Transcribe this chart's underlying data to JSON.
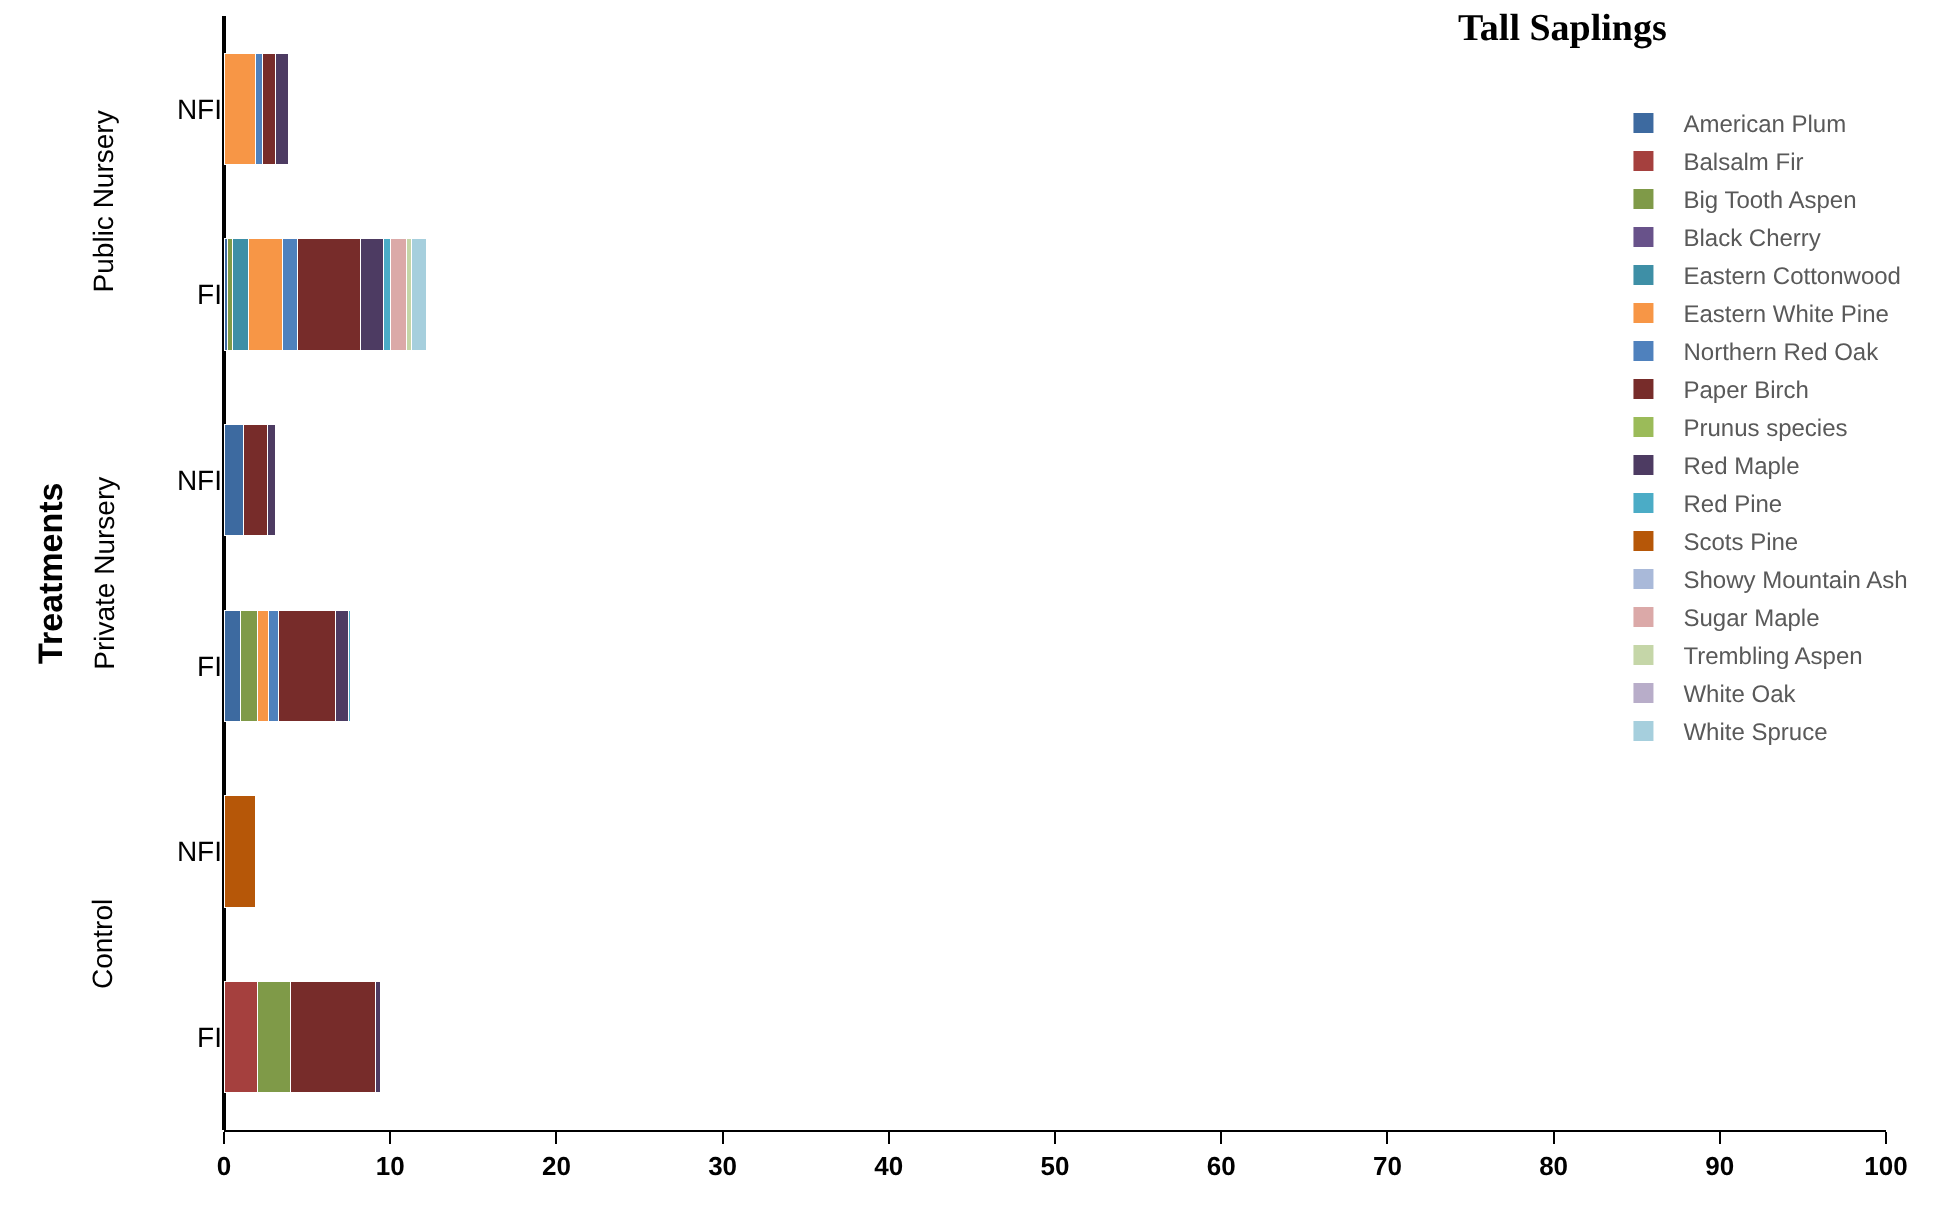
{
  "chart_data": {
    "type": "bar",
    "orientation": "horizontal",
    "stacked": true,
    "title": "Tall Saplings",
    "ylabel": "Treatments",
    "categories": [
      "NFI",
      "FI",
      "NFI",
      "FI",
      "NFI",
      "FI"
    ],
    "annotations": [
      "Public Nursery",
      "Private Nursery",
      "Control"
    ],
    "series": [
      {
        "name": "American Plum",
        "color": "#3d6aa0",
        "values": [
          null,
          0.2,
          1.2,
          1.0,
          null,
          null
        ]
      },
      {
        "name": "Balsalm Fir",
        "color": "#a5403e",
        "values": [
          null,
          null,
          null,
          null,
          null,
          2.0
        ]
      },
      {
        "name": "Big Tooth Aspen",
        "color": "#7f9a48",
        "values": [
          null,
          0.3,
          null,
          1.0,
          null,
          2.0
        ]
      },
      {
        "name": "Black Cherry",
        "color": "#68528a",
        "values": [
          null,
          null,
          null,
          null,
          null,
          null
        ]
      },
      {
        "name": "Eastern Cottonwood",
        "color": "#3e8fa6",
        "values": [
          null,
          1.0,
          null,
          null,
          null,
          null
        ]
      },
      {
        "name": "Eastern White Pine",
        "color": "#f79646",
        "values": [
          1.9,
          2.0,
          null,
          0.7,
          null,
          null
        ]
      },
      {
        "name": "Northern Red Oak",
        "color": "#4f81bd",
        "values": [
          0.4,
          0.9,
          null,
          0.6,
          null,
          null
        ]
      },
      {
        "name": "Paper Birch",
        "color": "#772c2a",
        "values": [
          0.8,
          3.8,
          1.4,
          3.4,
          null,
          5.1
        ]
      },
      {
        "name": "Prunus species",
        "color": "#9bbb59",
        "values": [
          null,
          null,
          null,
          null,
          null,
          null
        ]
      },
      {
        "name": "Red Maple",
        "color": "#4d3b62",
        "values": [
          0.8,
          1.4,
          0.5,
          0.8,
          null,
          0.3
        ]
      },
      {
        "name": "Red Pine",
        "color": "#4bacc6",
        "values": [
          null,
          0.4,
          null,
          0.1,
          null,
          null
        ]
      },
      {
        "name": "Scots Pine",
        "color": "#b65708",
        "values": [
          null,
          null,
          null,
          null,
          1.9,
          null
        ]
      },
      {
        "name": "Showy Mountain Ash",
        "color": "#a9b9d9",
        "values": [
          null,
          null,
          null,
          null,
          null,
          null
        ]
      },
      {
        "name": "Sugar Maple",
        "color": "#dba9a8",
        "values": [
          null,
          1.0,
          null,
          null,
          null,
          null
        ]
      },
      {
        "name": "Trembling Aspen",
        "color": "#c5d6a8",
        "values": [
          null,
          0.3,
          null,
          null,
          null,
          null
        ]
      },
      {
        "name": "White Oak",
        "color": "#b8adc9",
        "values": [
          null,
          null,
          null,
          null,
          null,
          null
        ]
      },
      {
        "name": "White Spruce",
        "color": "#a6cfdd",
        "values": [
          null,
          0.9,
          null,
          null,
          null,
          null
        ]
      }
    ],
    "xlim": [
      0,
      100
    ],
    "xticks": [
      0,
      10,
      20,
      30,
      40,
      50,
      60,
      70,
      80,
      90,
      100
    ],
    "legend": "top right"
  }
}
